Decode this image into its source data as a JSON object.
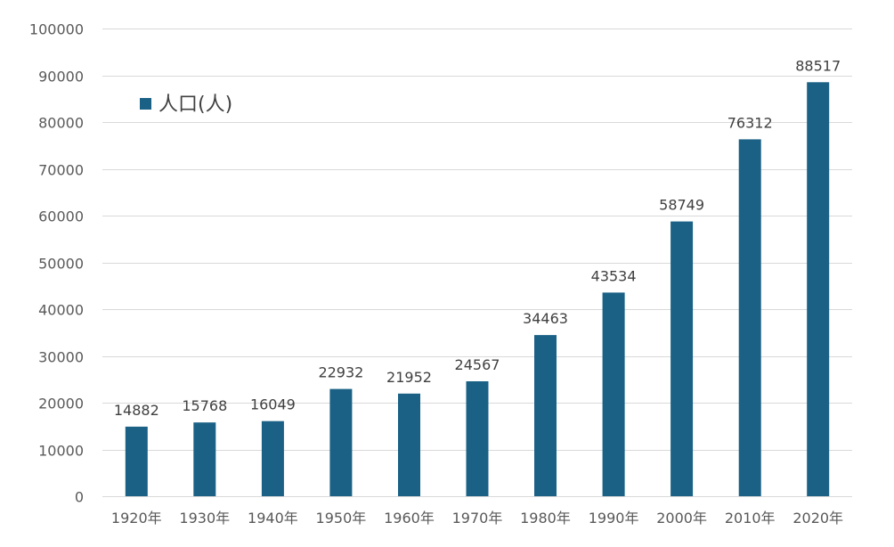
{
  "chart_data": {
    "type": "bar",
    "categories": [
      "1920年",
      "1930年",
      "1940年",
      "1950年",
      "1960年",
      "1970年",
      "1980年",
      "1990年",
      "2000年",
      "2010年",
      "2020年"
    ],
    "series": [
      {
        "name": "人口(人)",
        "values": [
          14882,
          15768,
          16049,
          22932,
          21952,
          24567,
          34463,
          43534,
          58749,
          76312,
          88517
        ],
        "color": "#1a6185"
      }
    ],
    "data_labels": [
      "14882",
      "15768",
      "16049",
      "22932",
      "21952",
      "24567",
      "34463",
      "43534",
      "58749",
      "76312",
      "88517"
    ],
    "y_ticks": [
      0,
      10000,
      20000,
      30000,
      40000,
      50000,
      60000,
      70000,
      80000,
      90000,
      100000
    ],
    "ylim": [
      0,
      100000
    ],
    "grid": true,
    "legend_position": "top-left"
  },
  "colors": {
    "bar": "#1a6185",
    "grid": "#d9d9d9",
    "tick_text": "#595959",
    "label_text": "#404040"
  }
}
